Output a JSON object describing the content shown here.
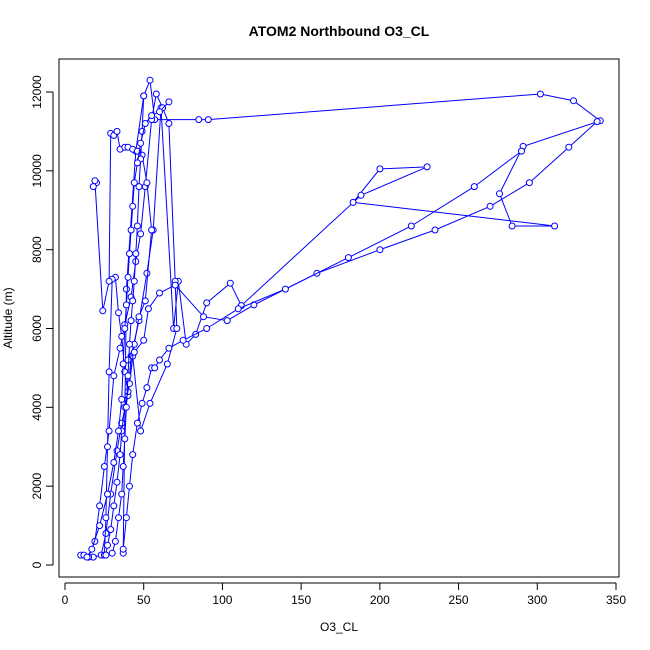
{
  "chart_data": {
    "type": "line",
    "title": "ATOM2 Northbound O3_CL",
    "xlabel": "O3_CL",
    "ylabel": "Altitude (m)",
    "xlim": [
      0,
      350
    ],
    "ylim": [
      0,
      12500
    ],
    "xticks": [
      0,
      50,
      100,
      150,
      200,
      250,
      300,
      350
    ],
    "yticks": [
      0,
      2000,
      4000,
      6000,
      8000,
      10000,
      12000
    ],
    "grid": false,
    "legend": "none",
    "series_color": "#0000ff",
    "series": [
      {
        "x": [
          10,
          18,
          23,
          26,
          29,
          33,
          36,
          40,
          42,
          47,
          52,
          56,
          61,
          69,
          72,
          77,
          83,
          90,
          105,
          112,
          188,
          230,
          200,
          183,
          311,
          284,
          276,
          291,
          340,
          323,
          302,
          91,
          85,
          57,
          54,
          50,
          45,
          39,
          37
        ],
        "y": [
          250,
          200,
          250,
          800,
          1800,
          2900,
          3600,
          4300,
          5300,
          6200,
          7400,
          8500,
          11600,
          6000,
          7200,
          5600,
          5850,
          6650,
          7150,
          6580,
          9380,
          10100,
          10050,
          9200,
          8600,
          8600,
          9420,
          10620,
          11270,
          11780,
          11950,
          11300,
          11300,
          11300,
          12300,
          11900,
          10500,
          7000,
          300
        ]
      },
      {
        "x": [
          12,
          15,
          19,
          22,
          25,
          28,
          31,
          35,
          38,
          42,
          45,
          48,
          51,
          55,
          58,
          62,
          66,
          70,
          71,
          65,
          54,
          48,
          43,
          40,
          38,
          36,
          34,
          32,
          30,
          28,
          27,
          26,
          25
        ],
        "y": [
          250,
          200,
          600,
          1500,
          2500,
          3400,
          4800,
          5500,
          6100,
          6800,
          7700,
          8400,
          9600,
          11300,
          11950,
          11600,
          11200,
          7200,
          6000,
          5100,
          4100,
          3400,
          5300,
          4400,
          4900,
          5800,
          6400,
          7300,
          7250,
          4900,
          3000,
          1200,
          250
        ]
      },
      {
        "x": [
          20,
          18,
          19,
          24,
          28,
          29,
          31,
          33,
          35,
          38,
          40,
          43,
          46,
          49,
          52,
          55,
          51,
          47,
          44,
          41,
          38,
          36,
          35,
          33,
          31,
          29,
          27,
          26
        ],
        "y": [
          9700,
          9600,
          9750,
          6450,
          7200,
          10950,
          10900,
          11000,
          10550,
          10600,
          10600,
          10550,
          10500,
          10400,
          9700,
          8500,
          6700,
          6300,
          5600,
          4600,
          4000,
          3400,
          2800,
          2100,
          1500,
          900,
          500,
          250
        ]
      },
      {
        "x": [
          40,
          44,
          50,
          53,
          60,
          70,
          88,
          103,
          120,
          160,
          200,
          235,
          270,
          295,
          320,
          338
        ],
        "y": [
          5200,
          5400,
          5700,
          6500,
          6900,
          7100,
          6300,
          6200,
          6600,
          7400,
          8000,
          8500,
          9100,
          9700,
          10600,
          11250
        ]
      },
      {
        "x": [
          37,
          39,
          41,
          43,
          46,
          49,
          52,
          55,
          57,
          60,
          66,
          75,
          90,
          110,
          140,
          180,
          220,
          260,
          290
        ],
        "y": [
          400,
          1200,
          2000,
          2800,
          3600,
          4100,
          4500,
          5000,
          5000,
          5200,
          5500,
          5700,
          6000,
          6500,
          7000,
          7800,
          8600,
          9600,
          10500
        ]
      },
      {
        "x": [
          30,
          32,
          34,
          36,
          37,
          38,
          39,
          40,
          41,
          42,
          43,
          44,
          45,
          46,
          47,
          48,
          49,
          50
        ],
        "y": [
          300,
          600,
          1200,
          1800,
          2500,
          3200,
          4000,
          4800,
          5600,
          6200,
          6700,
          7200,
          7900,
          8600,
          9600,
          10300,
          11000,
          11900
        ]
      },
      {
        "x": [
          14,
          17,
          22,
          27,
          31,
          34,
          36,
          37,
          38,
          39,
          40,
          41,
          42,
          43,
          44,
          46,
          48,
          51,
          55,
          60,
          66
        ],
        "y": [
          200,
          400,
          1000,
          1800,
          2600,
          3400,
          4200,
          5100,
          6000,
          6600,
          7300,
          7900,
          8500,
          9100,
          9700,
          10200,
          10700,
          11200,
          11400,
          11500,
          11750
        ]
      }
    ]
  }
}
